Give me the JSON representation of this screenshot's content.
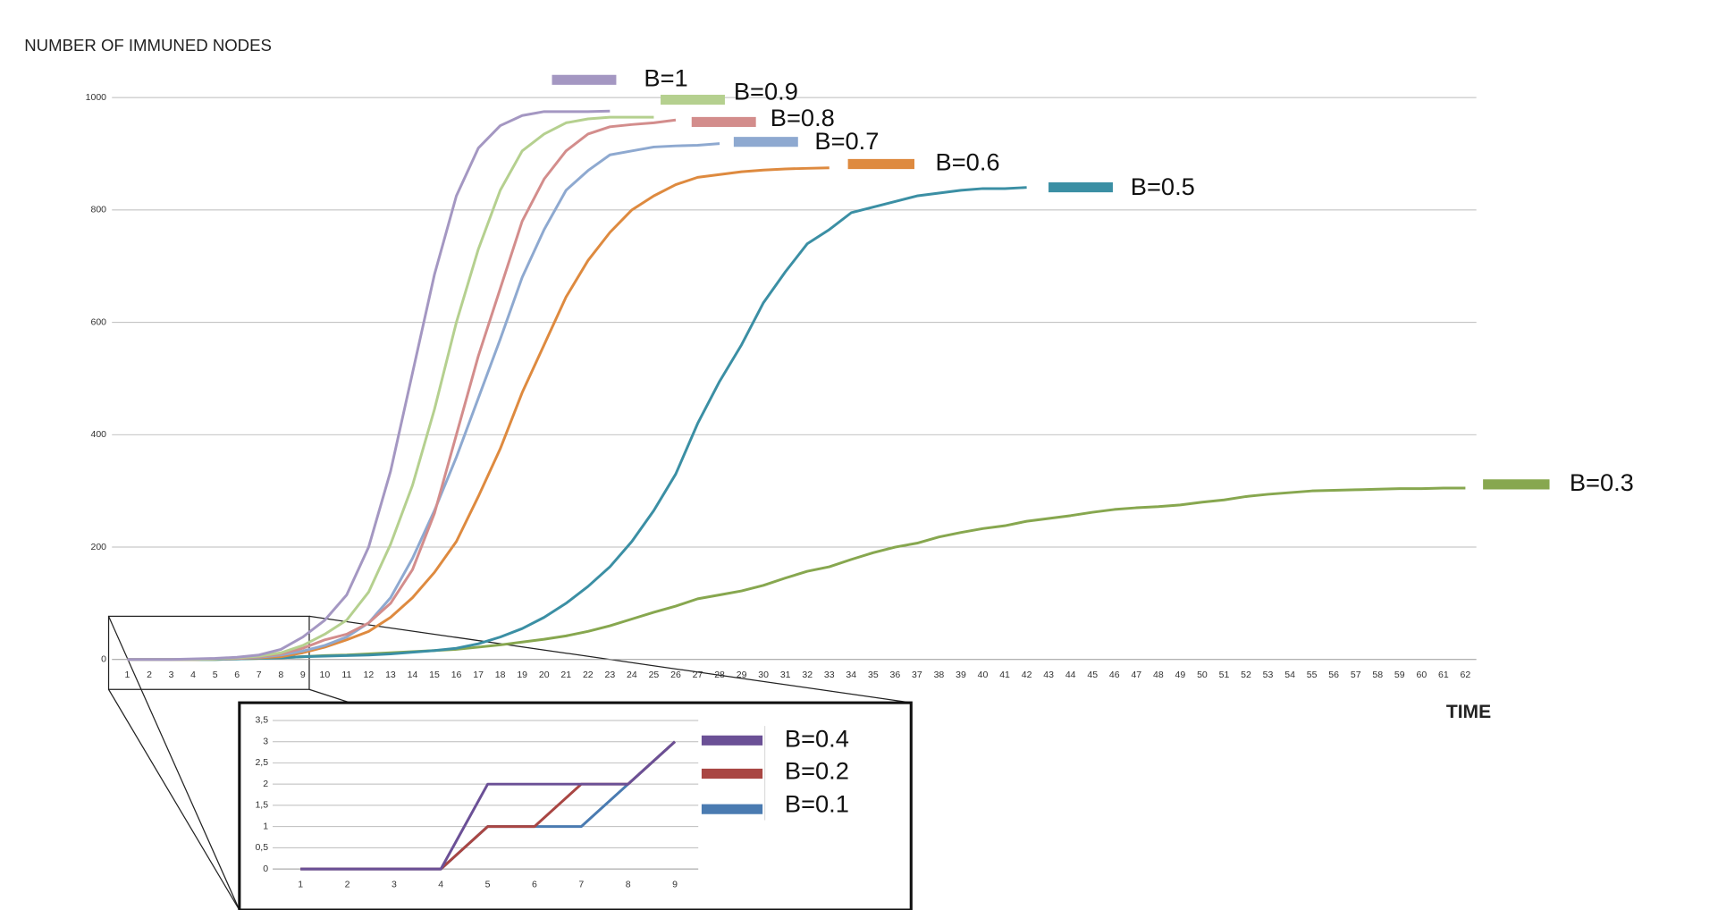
{
  "chart_data": [
    {
      "type": "line",
      "y_label": "NUMBER OF IMMUNED NODES",
      "x_label": "TIME",
      "categories": [
        1,
        2,
        3,
        4,
        5,
        6,
        7,
        8,
        9,
        10,
        11,
        12,
        13,
        14,
        15,
        16,
        17,
        18,
        19,
        20,
        21,
        22,
        23,
        24,
        25,
        26,
        27,
        28,
        29,
        30,
        31,
        32,
        33,
        34,
        35,
        36,
        37,
        38,
        39,
        40,
        41,
        42,
        43,
        44,
        45,
        46,
        47,
        48,
        49,
        50,
        51,
        52,
        53,
        54,
        55,
        56,
        57,
        58,
        59,
        60,
        61,
        62
      ],
      "ylim": [
        0,
        1000
      ],
      "yticks": [
        0,
        200,
        400,
        600,
        800,
        1000
      ],
      "grid": true,
      "series": [
        {
          "name": "B=1",
          "color": "#a497c2",
          "values": [
            0,
            0,
            0,
            1,
            2,
            4,
            8,
            18,
            40,
            70,
            115,
            200,
            335,
            510,
            685,
            825,
            910,
            950,
            968,
            975,
            975,
            975,
            976,
            null,
            null,
            null,
            null,
            null,
            null,
            null,
            null,
            null,
            null,
            null,
            null,
            null,
            null,
            null,
            null,
            null,
            null,
            null,
            null,
            null,
            null,
            null,
            null,
            null,
            null,
            null,
            null,
            null,
            null,
            null,
            null,
            null,
            null,
            null,
            null,
            null,
            null,
            null
          ]
        },
        {
          "name": "B=0.9",
          "color": "#b5d08f",
          "values": [
            0,
            0,
            0,
            0,
            1,
            3,
            6,
            12,
            25,
            45,
            70,
            120,
            205,
            310,
            445,
            600,
            730,
            835,
            905,
            935,
            955,
            962,
            965,
            965,
            965,
            null,
            null,
            null,
            null,
            null,
            null,
            null,
            null,
            null,
            null,
            null,
            null,
            null,
            null,
            null,
            null,
            null,
            null,
            null,
            null,
            null,
            null,
            null,
            null,
            null,
            null,
            null,
            null,
            null,
            null,
            null,
            null,
            null,
            null,
            null,
            null,
            null
          ]
        },
        {
          "name": "B=0.8",
          "color": "#d38d8c",
          "values": [
            0,
            0,
            0,
            0,
            1,
            2,
            5,
            10,
            20,
            35,
            45,
            65,
            100,
            160,
            260,
            400,
            540,
            660,
            780,
            855,
            905,
            935,
            948,
            952,
            955,
            960,
            null,
            null,
            null,
            null,
            null,
            null,
            null,
            null,
            null,
            null,
            null,
            null,
            null,
            null,
            null,
            null,
            null,
            null,
            null,
            null,
            null,
            null,
            null,
            null,
            null,
            null,
            null,
            null,
            null,
            null,
            null,
            null,
            null,
            null,
            null,
            null
          ]
        },
        {
          "name": "B=0.7",
          "color": "#8ea9d0",
          "values": [
            0,
            0,
            0,
            0,
            1,
            2,
            4,
            8,
            15,
            25,
            40,
            65,
            110,
            180,
            265,
            360,
            465,
            570,
            680,
            765,
            835,
            870,
            898,
            905,
            912,
            914,
            915,
            918,
            null,
            null,
            null,
            null,
            null,
            null,
            null,
            null,
            null,
            null,
            null,
            null,
            null,
            null,
            null,
            null,
            null,
            null,
            null,
            null,
            null,
            null,
            null,
            null,
            null,
            null,
            null,
            null,
            null,
            null,
            null,
            null,
            null,
            null
          ]
        },
        {
          "name": "B=0.6",
          "color": "#de8a3f",
          "values": [
            0,
            0,
            0,
            0,
            1,
            2,
            3,
            5,
            12,
            22,
            35,
            50,
            75,
            110,
            155,
            210,
            290,
            375,
            475,
            560,
            645,
            710,
            760,
            800,
            825,
            845,
            858,
            863,
            868,
            871,
            873,
            874,
            875,
            null,
            null,
            null,
            null,
            null,
            null,
            null,
            null,
            null,
            null,
            null,
            null,
            null,
            null,
            null,
            null,
            null,
            null,
            null,
            null,
            null,
            null,
            null,
            null,
            null,
            null,
            null,
            null,
            null
          ]
        },
        {
          "name": "B=0.5",
          "color": "#3b8fa4",
          "values": [
            0,
            0,
            0,
            0,
            0,
            1,
            2,
            3,
            5,
            6,
            7,
            8,
            10,
            13,
            16,
            20,
            28,
            40,
            55,
            75,
            100,
            130,
            165,
            210,
            265,
            330,
            420,
            495,
            560,
            635,
            690,
            740,
            765,
            795,
            805,
            815,
            825,
            830,
            835,
            838,
            838,
            840,
            null,
            null,
            null,
            null,
            null,
            null,
            null,
            null,
            null,
            null,
            null,
            null,
            null,
            null,
            null,
            null,
            null,
            null,
            null,
            null
          ]
        },
        {
          "name": "B=0.3",
          "color": "#87a74f",
          "values": [
            0,
            0,
            0,
            0,
            0,
            1,
            2,
            3,
            5,
            7,
            8,
            10,
            12,
            14,
            16,
            18,
            22,
            26,
            31,
            36,
            42,
            50,
            60,
            72,
            84,
            95,
            108,
            115,
            122,
            132,
            145,
            157,
            165,
            178,
            190,
            200,
            207,
            218,
            226,
            233,
            238,
            246,
            251,
            256,
            262,
            267,
            270,
            272,
            275,
            280,
            284,
            290,
            294,
            297,
            300,
            301,
            302,
            303,
            304,
            304,
            305,
            305
          ]
        }
      ]
    },
    {
      "type": "line",
      "categories": [
        1,
        2,
        3,
        4,
        5,
        6,
        7,
        8,
        9
      ],
      "ylim": [
        0,
        3.5
      ],
      "yticks": [
        0,
        {
          "value": 0.5,
          "label": "0,5"
        },
        1,
        {
          "value": 1.5,
          "label": "1,5"
        },
        2,
        {
          "value": 2.5,
          "label": "2,5"
        },
        3,
        {
          "value": 3.5,
          "label": "3,5"
        }
      ],
      "grid": true,
      "series": [
        {
          "name": "B=0.4",
          "color": "#6b5096",
          "values": [
            0,
            0,
            0,
            0,
            2,
            2,
            2,
            2,
            3
          ]
        },
        {
          "name": "B=0.2",
          "color": "#a94643",
          "values": [
            0,
            0,
            0,
            0,
            1,
            1,
            2,
            2,
            3
          ]
        },
        {
          "name": "B=0.1",
          "color": "#4a7bb1",
          "values": [
            0,
            0,
            0,
            0,
            1,
            1,
            1,
            2,
            3
          ]
        }
      ]
    }
  ]
}
